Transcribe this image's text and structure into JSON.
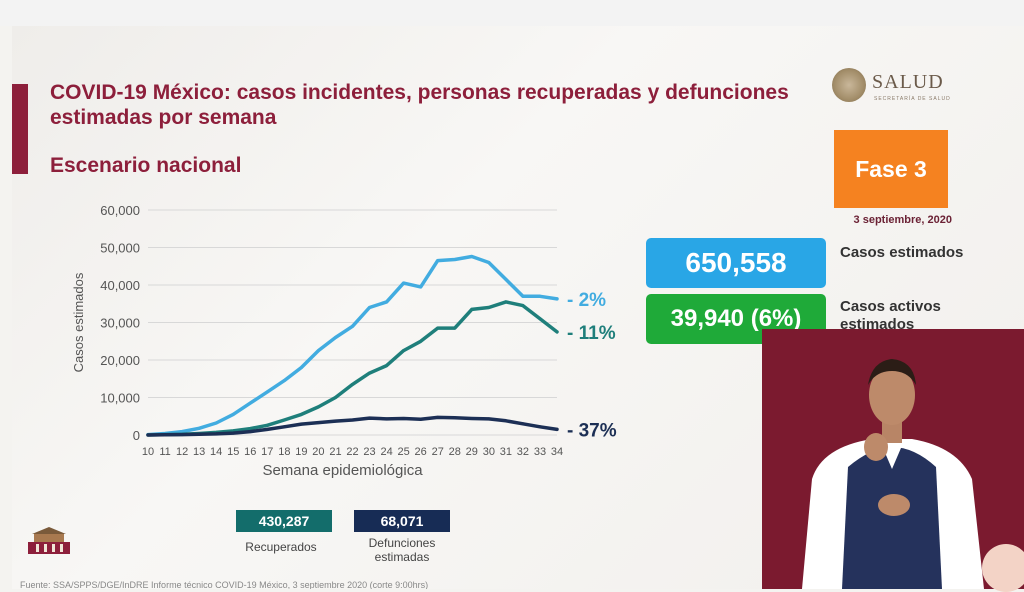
{
  "slide": {
    "title": "COVID-19 México: casos incidentes, personas recuperadas y defunciones estimadas por semana",
    "subtitle": "Escenario nacional",
    "logo_text": "SALUD",
    "logo_subtext": "SECRETARÍA DE SALUD",
    "phase": "Fase 3",
    "date": "3 septiembre, 2020",
    "stats": {
      "estimated_value": "650,558",
      "estimated_label": "Casos estimados",
      "active_value": "39,940 (6%)",
      "active_label": "Casos activos estimados"
    },
    "summary": {
      "recovered_value": "430,287",
      "recovered_label": "Recuperados",
      "deaths_value": "68,071",
      "deaths_label": "Defunciones estimadas"
    },
    "footer": "Fuente: SSA/SPPS/DGE/InDRE Informe técnico COVID-19 México, 3 septiembre 2020 (corte 9:00hrs)"
  },
  "colors": {
    "accent": "#8d1f3b",
    "cases": "#42ace0",
    "recovered": "#1f7f7b",
    "deaths": "#1c2f55",
    "phase": "#f58220",
    "estimated_box": "#29a6e6",
    "active_box": "#1faa39",
    "axis_text": "#555555",
    "grid": "#d8d8d8"
  },
  "chart_data": {
    "type": "line",
    "xlabel": "Semana epidemiológica",
    "ylabel": "Casos estimados",
    "ylim": [
      0,
      60000
    ],
    "yticks": [
      "0",
      "10,000",
      "20,000",
      "30,000",
      "40,000",
      "50,000",
      "60,000"
    ],
    "x": [
      10,
      11,
      12,
      13,
      14,
      15,
      16,
      17,
      18,
      19,
      20,
      21,
      22,
      23,
      24,
      25,
      26,
      27,
      28,
      29,
      30,
      31,
      32,
      33,
      34
    ],
    "grid": true,
    "series": [
      {
        "values": [
          100,
          400,
          900,
          1800,
          3200,
          5500,
          8500,
          11500,
          14500,
          18000,
          22500,
          26000,
          29000,
          34000,
          35500,
          40500,
          39500,
          46500,
          46800,
          47600,
          46000,
          41500,
          37000,
          37000,
          36300
        ],
        "end_label": "- 2%"
      },
      {
        "values": [
          0,
          100,
          200,
          400,
          700,
          1100,
          1700,
          2600,
          4000,
          5500,
          7500,
          10000,
          13500,
          16500,
          18500,
          22500,
          25000,
          28500,
          28500,
          33500,
          34000,
          35500,
          34500,
          31000,
          27500
        ],
        "end_label": "- 11%"
      },
      {
        "values": [
          0,
          50,
          100,
          200,
          300,
          500,
          900,
          1500,
          2200,
          2900,
          3300,
          3700,
          4000,
          4500,
          4300,
          4400,
          4200,
          4700,
          4600,
          4400,
          4300,
          3800,
          3000,
          2200,
          1500
        ],
        "end_label": "- 37%"
      }
    ]
  }
}
